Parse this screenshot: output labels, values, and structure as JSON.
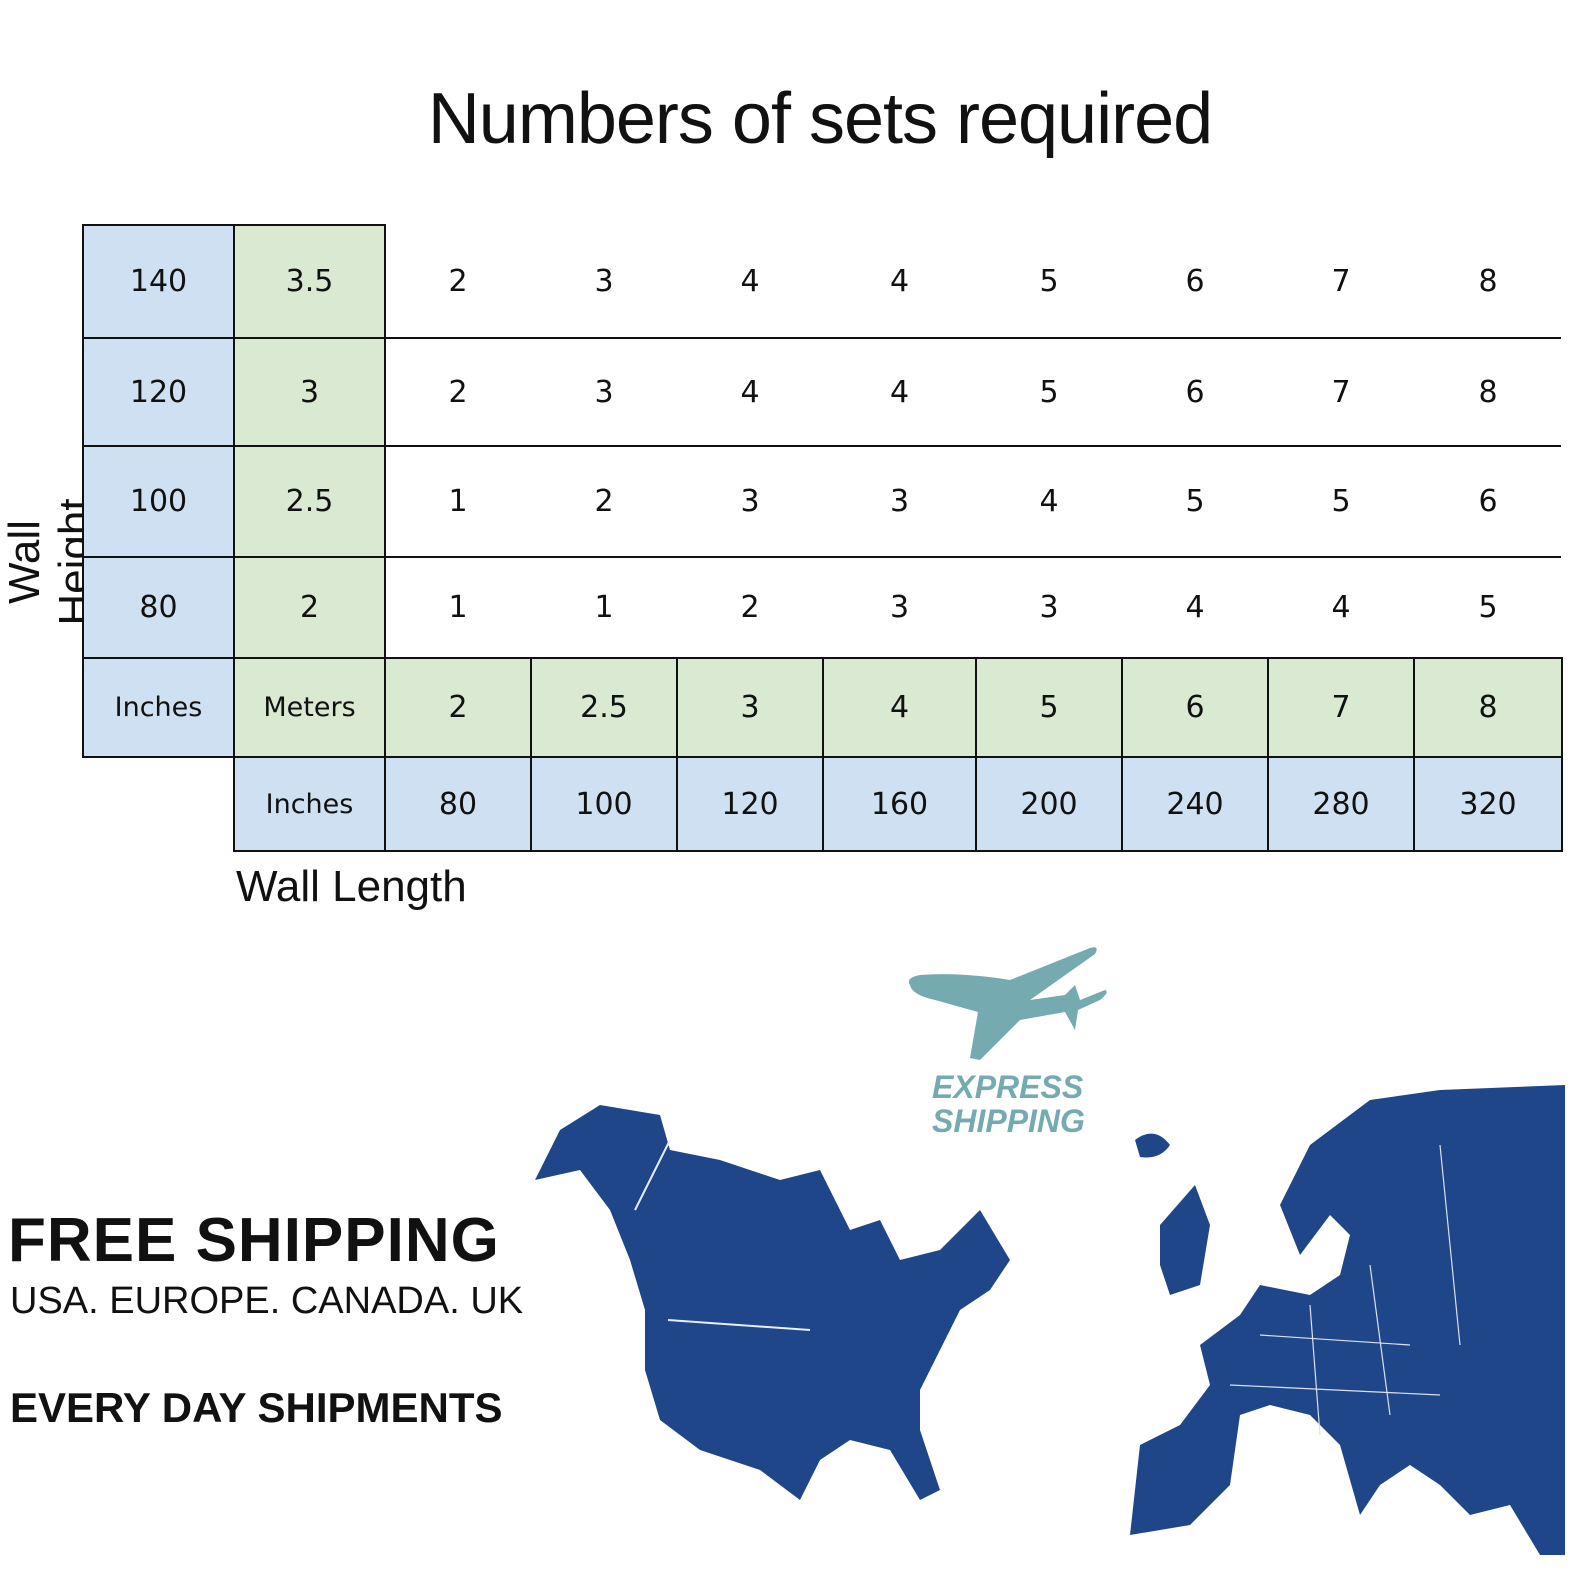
{
  "title": "Numbers of sets required",
  "axis": {
    "height_label": "Wall Height",
    "length_label": "Wall Length"
  },
  "table": {
    "rows": [
      {
        "inches": "140",
        "meters": "3.5",
        "sets": [
          "2",
          "3",
          "4",
          "4",
          "5",
          "6",
          "7",
          "8"
        ]
      },
      {
        "inches": "120",
        "meters": "3",
        "sets": [
          "2",
          "3",
          "4",
          "4",
          "5",
          "6",
          "7",
          "8"
        ]
      },
      {
        "inches": "100",
        "meters": "2.5",
        "sets": [
          "1",
          "2",
          "3",
          "3",
          "4",
          "5",
          "5",
          "6"
        ]
      },
      {
        "inches": "80",
        "meters": "2",
        "sets": [
          "1",
          "1",
          "2",
          "3",
          "3",
          "4",
          "4",
          "5"
        ]
      }
    ],
    "unit_inches": "Inches",
    "unit_meters": "Meters",
    "length_meters": [
      "2",
      "2.5",
      "3",
      "4",
      "5",
      "6",
      "7",
      "8"
    ],
    "length_inches": [
      "80",
      "100",
      "120",
      "160",
      "200",
      "240",
      "280",
      "320"
    ]
  },
  "shipping": {
    "express_line1": "EXPRESS",
    "express_line2": "SHIPPING",
    "free": "FREE SHIPPING",
    "regions": "USA. EUROPE. CANADA. UK",
    "every_day": "EVERY DAY SHIPMENTS"
  },
  "colors": {
    "inches_cell": "#cfe0f2",
    "meters_cell": "#d9e9d2",
    "map": "#1f4688",
    "plane": "#74aab0"
  }
}
